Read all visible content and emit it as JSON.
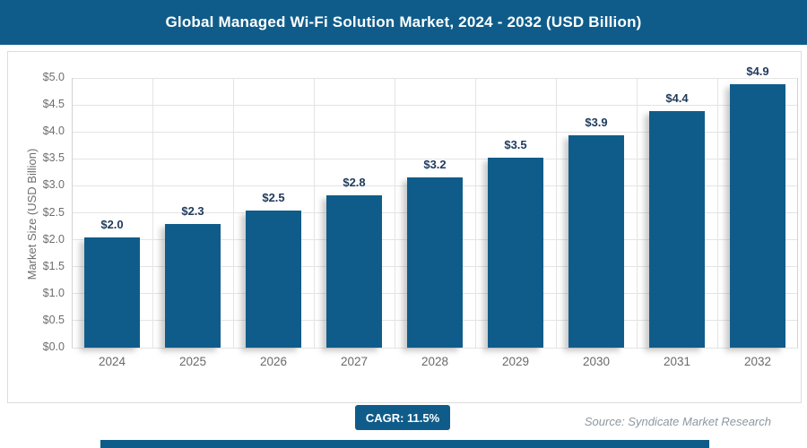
{
  "header": {
    "title": "Global Managed Wi-Fi Solution Market, 2024 - 2032 (USD Billion)"
  },
  "chart_data": {
    "type": "bar",
    "title": "Global Managed Wi-Fi Solution Market, 2024 - 2032 (USD Billion)",
    "categories": [
      "2024",
      "2025",
      "2026",
      "2027",
      "2028",
      "2029",
      "2030",
      "2031",
      "2032"
    ],
    "values": [
      2.05,
      2.29,
      2.54,
      2.83,
      3.16,
      3.52,
      3.93,
      4.39,
      4.89
    ],
    "bar_labels": [
      "$2.0",
      "$2.3",
      "$2.5",
      "$2.8",
      "$3.2",
      "$3.5",
      "$3.9",
      "$4.4",
      "$4.9"
    ],
    "xlabel": "",
    "ylabel": "Market Size (USD Billion)",
    "ylim": [
      0,
      5
    ],
    "ytick_labels": [
      "$0.0",
      "$0.5",
      "$1.0",
      "$1.5",
      "$2.0",
      "$2.5",
      "$3.0",
      "$3.5",
      "$4.0",
      "$4.5",
      "$5.0"
    ],
    "grid": true,
    "legend": "none",
    "bar_color": "#0F5C8A"
  },
  "footer": {
    "cagr_label": "CAGR: 11.5%",
    "source": "Source: Syndicate Market Research"
  },
  "colors": {
    "primary_blue": "#0F5C8A",
    "value_label": "#1E3A5C",
    "axis_text": "#6E6E6E",
    "gridline": "#E4E4E4",
    "card_border": "#DCDCDC",
    "source_text": "#8C98A0"
  }
}
